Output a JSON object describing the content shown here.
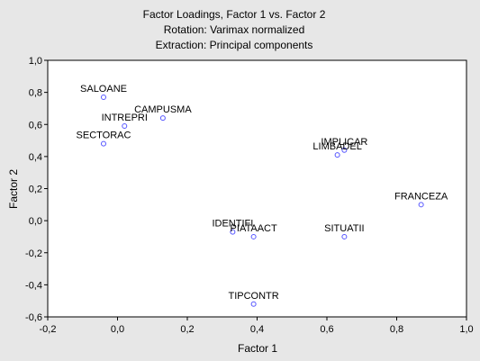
{
  "chart_data": {
    "type": "scatter",
    "title": [
      "Factor Loadings, Factor 1 vs. Factor 2",
      "Rotation: Varimax normalized",
      "Extraction: Principal components"
    ],
    "xlabel": "Factor 1",
    "ylabel": "Factor 2",
    "xlim": [
      -0.2,
      1.0
    ],
    "ylim": [
      -0.6,
      1.0
    ],
    "xticks": [
      -0.2,
      0.0,
      0.2,
      0.4,
      0.6,
      0.8,
      1.0
    ],
    "yticks": [
      -0.6,
      -0.4,
      -0.2,
      0.0,
      0.2,
      0.4,
      0.6,
      0.8,
      1.0
    ],
    "xtick_labels": [
      "-0,2",
      "0,0",
      "0,2",
      "0,4",
      "0,6",
      "0,8",
      "1,0"
    ],
    "ytick_labels": [
      "-0,6",
      "-0,4",
      "-0,2",
      "0,0",
      "0,2",
      "0,4",
      "0,6",
      "0,8",
      "1,0"
    ],
    "grid": false,
    "marker_color": "#5555ff",
    "points": [
      {
        "label": "SALOANE",
        "x": -0.04,
        "y": 0.77
      },
      {
        "label": "CAMPUSMA",
        "x": 0.13,
        "y": 0.64
      },
      {
        "label": "INTREPRI",
        "x": 0.02,
        "y": 0.59
      },
      {
        "label": "SECTORAC",
        "x": -0.04,
        "y": 0.48
      },
      {
        "label": "IMPLICAR",
        "x": 0.65,
        "y": 0.44
      },
      {
        "label": "LIMBADEL",
        "x": 0.63,
        "y": 0.41
      },
      {
        "label": "FRANCEZA",
        "x": 0.87,
        "y": 0.1
      },
      {
        "label": "IDENTIFI",
        "x": 0.33,
        "y": -0.07
      },
      {
        "label": "PIATAACT",
        "x": 0.39,
        "y": -0.1
      },
      {
        "label": "SITUATII",
        "x": 0.65,
        "y": -0.1
      },
      {
        "label": "TIPCONTR",
        "x": 0.39,
        "y": -0.52
      }
    ]
  }
}
